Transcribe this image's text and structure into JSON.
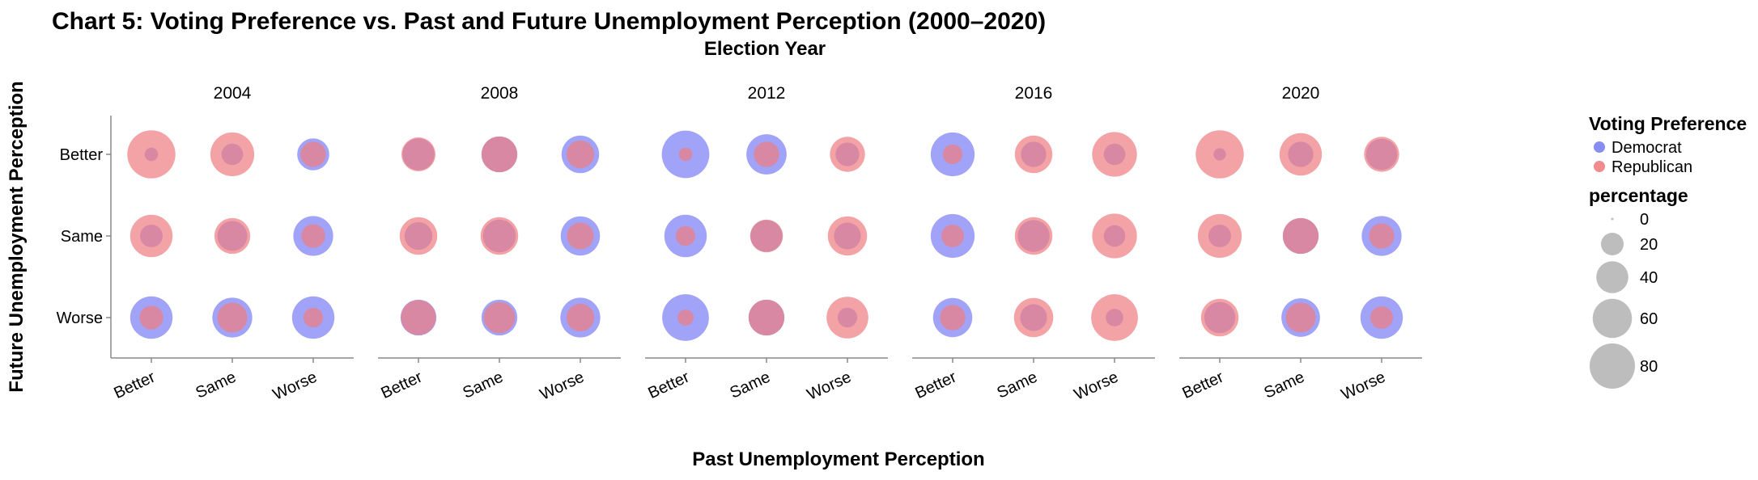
{
  "chart_data": {
    "type": "scatter",
    "title": "Chart 5: Voting Preference vs. Past and Future Unemployment Perception (2000–2020)",
    "column_title": "Election Year",
    "xlabel": "Past Unemployment Perception",
    "ylabel": "Future Unemployment Perception",
    "x_categories": [
      "Better",
      "Same",
      "Worse"
    ],
    "y_categories": [
      "Better",
      "Same",
      "Worse"
    ],
    "facets": [
      "2004",
      "2008",
      "2012",
      "2016",
      "2020"
    ],
    "color_legend": {
      "title": "Voting Preference",
      "entries": [
        {
          "name": "Democrat",
          "color": "#7b7ff4"
        },
        {
          "name": "Republican",
          "color": "#ef7e82"
        }
      ]
    },
    "size_legend": {
      "title": "percentage",
      "values": [
        0,
        20,
        40,
        60,
        80
      ],
      "labels": [
        "0",
        "20",
        "40",
        "60",
        "80"
      ]
    },
    "size_domain_max": 80,
    "series": [
      {
        "name": "Democrat",
        "color": "#7b7ff4",
        "facets": {
          "2004": [
            [
              7,
              18,
              40
            ],
            [
              20,
              35,
              62
            ],
            [
              70,
              62,
              70
            ]
          ],
          "2008": [
            [
              40,
              50,
              55
            ],
            [
              30,
              42,
              60
            ],
            [
              50,
              50,
              62
            ]
          ],
          "2012": [
            [
              88,
              63,
              22
            ],
            [
              70,
              40,
              28
            ],
            [
              85,
              50,
              15
            ]
          ],
          "2016": [
            [
              75,
              25,
              18
            ],
            [
              75,
              40,
              18
            ],
            [
              60,
              28,
              12
            ]
          ],
          "2020": [
            [
              6,
              25,
              38
            ],
            [
              20,
              50,
              62
            ],
            [
              38,
              58,
              70
            ]
          ]
        }
      },
      {
        "name": "Republican",
        "color": "#ef7e82",
        "facets": {
          "2004": [
            [
              90,
              75,
              25
            ],
            [
              70,
              50,
              22
            ],
            [
              22,
              35,
              15
            ]
          ],
          "2008": [
            [
              45,
              50,
              30
            ],
            [
              55,
              55,
              28
            ],
            [
              48,
              38,
              30
            ]
          ],
          "2012": [
            [
              7,
              25,
              48
            ],
            [
              15,
              42,
              60
            ],
            [
              10,
              50,
              68
            ]
          ],
          "2016": [
            [
              15,
              55,
              78
            ],
            [
              20,
              55,
              78
            ],
            [
              25,
              60,
              85
            ]
          ],
          "2020": [
            [
              90,
              70,
              48
            ],
            [
              75,
              50,
              25
            ],
            [
              55,
              35,
              20
            ]
          ]
        }
      }
    ],
    "grid": false,
    "legend_position": "right"
  }
}
